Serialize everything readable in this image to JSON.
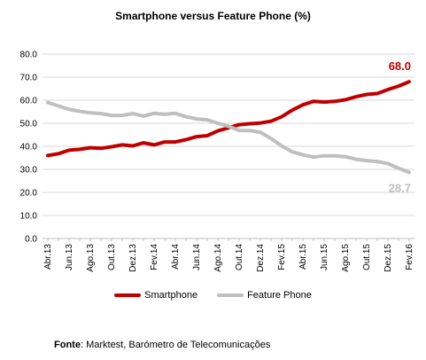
{
  "chart_data": {
    "type": "line",
    "title": "Smartphone versus Feature Phone (%)",
    "ylim": [
      0,
      80
    ],
    "y_ticks": [
      "0.0",
      "10.0",
      "20.0",
      "30.0",
      "40.0",
      "50.0",
      "60.0",
      "70.0",
      "80.0"
    ],
    "grid": true,
    "legend_position": "bottom",
    "x": [
      "Abr.13",
      "Mai.13",
      "Jun.13",
      "Jul.13",
      "Ago.13",
      "Set.13",
      "Out.13",
      "Nov.13",
      "Dez.13",
      "Jan.14",
      "Fev.14",
      "Mar.14",
      "Abr.14",
      "Mai.14",
      "Jun.14",
      "Jul.14",
      "Ago.14",
      "Set.14",
      "Out.14",
      "Nov.14",
      "Dez.14",
      "Jan.15",
      "Fev.15",
      "Mar.15",
      "Abr.15",
      "Mai.15",
      "Jun.15",
      "Jul.15",
      "Ago.15",
      "Set.15",
      "Out.15",
      "Nov.15",
      "Dez.15",
      "Jan.16",
      "Fev.16"
    ],
    "x_tick_labels": [
      "Abr.13",
      "Jun.13",
      "Ago.13",
      "Out.13",
      "Dez.13",
      "Fev.14",
      "Abr.14",
      "Jun.14",
      "Ago.14",
      "Out.14",
      "Dez.14",
      "Fev.15",
      "Abr.15",
      "Jun.15",
      "Ago.15",
      "Out.15",
      "Dez.15",
      "Fev.16"
    ],
    "series": [
      {
        "name": "Smartphone",
        "color": "#c00000",
        "values": [
          36.0,
          36.8,
          38.3,
          38.7,
          39.4,
          39.1,
          39.8,
          40.6,
          40.2,
          41.5,
          40.6,
          41.9,
          41.9,
          42.9,
          44.2,
          44.6,
          46.7,
          48.0,
          49.4,
          49.8,
          50.1,
          50.9,
          52.8,
          55.7,
          58.0,
          59.5,
          59.2,
          59.5,
          60.2,
          61.5,
          62.5,
          62.9,
          64.6,
          66.1,
          68.0
        ],
        "end_label": "68.0"
      },
      {
        "name": "Feature Phone",
        "color": "#bfbfbf",
        "values": [
          59.0,
          57.5,
          56.0,
          55.2,
          54.5,
          54.2,
          53.4,
          53.4,
          54.2,
          53.1,
          54.3,
          53.9,
          54.3,
          52.8,
          51.9,
          51.5,
          50.0,
          48.7,
          46.9,
          46.8,
          46.1,
          43.4,
          40.2,
          37.6,
          36.3,
          35.3,
          35.9,
          35.9,
          35.5,
          34.4,
          33.8,
          33.4,
          32.5,
          30.5,
          28.7
        ],
        "end_label": "28.7"
      }
    ]
  },
  "source": {
    "label": "Fonte",
    "text": ": Marktest, Barómetro de Telecomunicações"
  }
}
